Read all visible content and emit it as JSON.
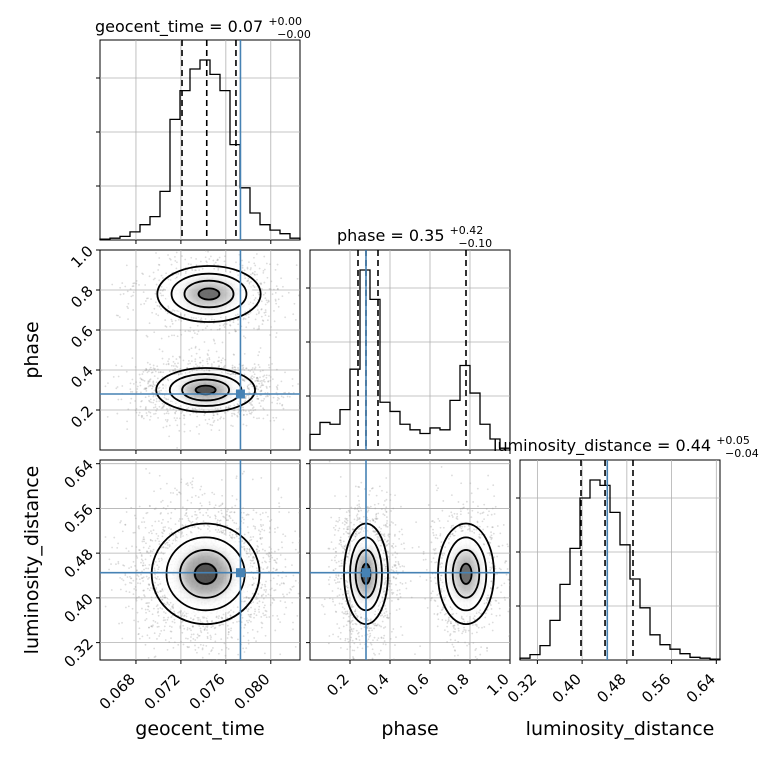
{
  "chart_data": {
    "type": "corner",
    "parameters": [
      "geocent_time",
      "phase",
      "luminosity_distance"
    ],
    "titles": [
      {
        "name": "geocent_time",
        "value": "0.07",
        "upper": "+0.00",
        "lower": "−0.00"
      },
      {
        "name": "phase",
        "value": "0.35",
        "upper": "+0.42",
        "lower": "−0.10"
      },
      {
        "name": "luminosity_distance",
        "value": "0.44",
        "upper": "+0.05",
        "lower": "−0.04"
      }
    ],
    "ranges": {
      "geocent_time": [
        0.0648,
        0.0826
      ],
      "phase": [
        0.0,
        1.0
      ],
      "luminosity_distance": [
        0.2889,
        0.6466
      ]
    },
    "ticks": {
      "geocent_time": [
        0.068,
        0.072,
        0.076,
        0.08
      ],
      "phase": [
        0.2,
        0.4,
        0.6,
        0.8,
        1.0
      ],
      "luminosity_distance": [
        0.32,
        0.4,
        0.48,
        0.56,
        0.64
      ]
    },
    "tick_labels": {
      "geocent_time": [
        "0.068",
        "0.072",
        "0.076",
        "0.080"
      ],
      "phase_x": [
        "0.2",
        "0.4",
        "0.6",
        "0.8",
        "1.0"
      ],
      "phase_y": [
        "0.2",
        "0.4",
        "0.6",
        "0.8",
        "1.0"
      ],
      "luminosity_distance": [
        "0.32",
        "0.40",
        "0.48",
        "0.56",
        "0.64"
      ]
    },
    "truth": {
      "geocent_time": 0.0773,
      "phase": 0.28,
      "luminosity_distance": 0.445
    },
    "quantiles": {
      "geocent_time": [
        0.0721,
        0.0743,
        0.0769
      ],
      "phase": [
        0.24,
        0.28,
        0.34,
        0.78
      ],
      "luminosity_distance": [
        0.398,
        0.441,
        0.491
      ]
    },
    "histograms": {
      "geocent_time": {
        "edges": [
          0.0648,
          0.06569,
          0.06658,
          0.06747,
          0.06836,
          0.06925,
          0.07014,
          0.07103,
          0.07192,
          0.07281,
          0.0737,
          0.07459,
          0.07548,
          0.07637,
          0.07726,
          0.07815,
          0.07904,
          0.07993,
          0.08082,
          0.08171,
          0.0826
        ],
        "counts": [
          0.005,
          0.01,
          0.02,
          0.045,
          0.085,
          0.13,
          0.27,
          0.67,
          0.83,
          0.95,
          1.0,
          0.92,
          0.83,
          0.53,
          0.29,
          0.15,
          0.085,
          0.055,
          0.035,
          0.01
        ]
      },
      "phase": {
        "edges": [
          0.0,
          0.05,
          0.1,
          0.15,
          0.2,
          0.25,
          0.3,
          0.35,
          0.4,
          0.45,
          0.5,
          0.55,
          0.6,
          0.65,
          0.7,
          0.75,
          0.8,
          0.85,
          0.9,
          0.95,
          1.0
        ],
        "counts": [
          0.085,
          0.15,
          0.14,
          0.22,
          0.44,
          0.98,
          0.82,
          0.26,
          0.21,
          0.14,
          0.11,
          0.09,
          0.12,
          0.11,
          0.27,
          0.46,
          0.31,
          0.14,
          0.06,
          0.01
        ]
      },
      "luminosity_distance": {
        "edges": [
          0.2889,
          0.30679,
          0.32467,
          0.34256,
          0.36044,
          0.37833,
          0.39621,
          0.4141,
          0.43198,
          0.44987,
          0.46775,
          0.48564,
          0.50352,
          0.52141,
          0.53929,
          0.55718,
          0.57506,
          0.59295,
          0.61083,
          0.62872,
          0.6466
        ],
        "counts": [
          0.01,
          0.03,
          0.08,
          0.22,
          0.42,
          0.62,
          0.9,
          1.0,
          0.97,
          0.82,
          0.64,
          0.45,
          0.29,
          0.14,
          0.085,
          0.06,
          0.035,
          0.015,
          0.01,
          0.005
        ]
      }
    },
    "grid": true,
    "truth_color": "#4682b4"
  }
}
